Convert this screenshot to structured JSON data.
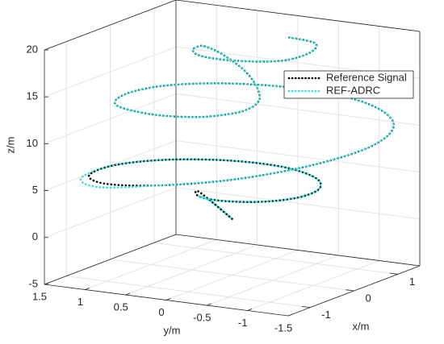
{
  "chart_data": {
    "type": "line3d",
    "xlabel": "x/m",
    "ylabel": "y/m",
    "zlabel": "z/m",
    "xlim": [
      -1.5,
      1.5
    ],
    "xticks": [
      -1,
      0,
      1
    ],
    "ylim": [
      -1.5,
      1.5
    ],
    "yticks": [
      1.5,
      1,
      0.5,
      0,
      -0.5,
      -1,
      -1.5
    ],
    "zlim": [
      -5,
      20
    ],
    "zticks": [
      -5,
      0,
      5,
      10,
      15,
      20
    ],
    "grid": true,
    "legend": "northeast",
    "series": [
      {
        "name": "Reference Signal",
        "color": "#000000",
        "x": [
          0,
          -0.175,
          -0.39,
          -0.55,
          -0.563,
          -0.375,
          0,
          0.475,
          0.909,
          1.15,
          1.083,
          0.675,
          0,
          -0.775,
          -1.386,
          -1.65,
          -1.472,
          -0.86,
          0,
          0.875,
          1.472,
          1.6,
          1.299,
          0.7,
          0,
          -0.625,
          -0.866,
          -0.75,
          -0.433,
          -0.175,
          0,
          0.15,
          0.26,
          0.3,
          0.26,
          0.16,
          0,
          -0.175,
          -0.433,
          -0.7,
          -0.736,
          -0.5,
          0,
          0.45,
          0.606
        ],
        "y": [
          0,
          0.303,
          0.225,
          0,
          -0.325,
          -0.65,
          -0.85,
          -0.823,
          -0.525,
          0,
          0.625,
          1.169,
          1.45,
          1.342,
          0.8,
          0,
          -0.85,
          -1.49,
          -1.74,
          -1.516,
          -0.85,
          0,
          0.75,
          1.212,
          1.32,
          1.083,
          0.5,
          0,
          -0.25,
          -0.303,
          -0.3,
          -0.26,
          -0.15,
          0,
          0.15,
          0.277,
          0.33,
          0.303,
          0.25,
          0,
          -0.425,
          -0.866,
          -0.95,
          -0.779,
          -0.35
        ],
        "z": [
          1,
          3.8,
          4.0,
          4.1,
          4.2,
          4.25,
          4.3,
          4.35,
          4.4,
          4.5,
          4.6,
          4.8,
          5.1,
          5.5,
          6.3,
          7.5,
          8.8,
          10.0,
          10.8,
          11.3,
          11.7,
          12.0,
          12.3,
          12.6,
          12.8,
          13.0,
          13.1,
          13.2,
          13.3,
          13.4,
          13.6,
          14.0,
          15.0,
          16.2,
          17.3,
          18.3,
          19.0,
          19.4,
          19.5,
          19.6,
          19.65,
          19.7,
          19.75,
          19.8,
          19.7
        ]
      },
      {
        "name": "REF-ADRC",
        "color": "#33e0e0",
        "x": [
          0,
          -0.1,
          -0.3,
          -0.55,
          -0.563,
          -0.375,
          0,
          0.475,
          0.909,
          1.15,
          1.083,
          0.675,
          0,
          -0.85,
          -1.45,
          -1.65,
          -1.472,
          -0.86,
          0,
          0.875,
          1.472,
          1.6,
          1.299,
          0.7,
          0,
          -0.625,
          -0.866,
          -0.75,
          -0.433,
          -0.175,
          0,
          0.15,
          0.26,
          0.3,
          0.26,
          0.16,
          0,
          -0.175,
          -0.433,
          -0.7,
          -0.736,
          -0.5,
          0,
          0.45,
          0.606
        ],
        "y": [
          0,
          0.2,
          0.25,
          0,
          -0.325,
          -0.65,
          -0.85,
          -0.823,
          -0.525,
          0,
          0.625,
          1.169,
          1.45,
          1.4,
          0.85,
          0,
          -0.85,
          -1.49,
          -1.74,
          -1.516,
          -0.85,
          0,
          0.75,
          1.212,
          1.32,
          1.083,
          0.5,
          0,
          -0.25,
          -0.303,
          -0.3,
          -0.26,
          -0.15,
          0,
          0.15,
          0.277,
          0.33,
          0.303,
          0.25,
          0,
          -0.425,
          -0.866,
          -0.95,
          -0.779,
          -0.35
        ],
        "z": [
          1,
          2.8,
          3.7,
          4.1,
          4.2,
          4.25,
          4.3,
          4.35,
          4.4,
          4.5,
          4.6,
          4.8,
          5.1,
          5.3,
          6.0,
          7.5,
          8.8,
          10.0,
          10.8,
          11.3,
          11.7,
          12.0,
          12.3,
          12.6,
          12.8,
          13.0,
          13.1,
          13.2,
          13.3,
          13.4,
          13.6,
          14.0,
          15.0,
          16.2,
          17.3,
          18.3,
          19.0,
          19.4,
          19.5,
          19.6,
          19.65,
          19.7,
          19.75,
          19.8,
          19.7
        ]
      }
    ]
  }
}
